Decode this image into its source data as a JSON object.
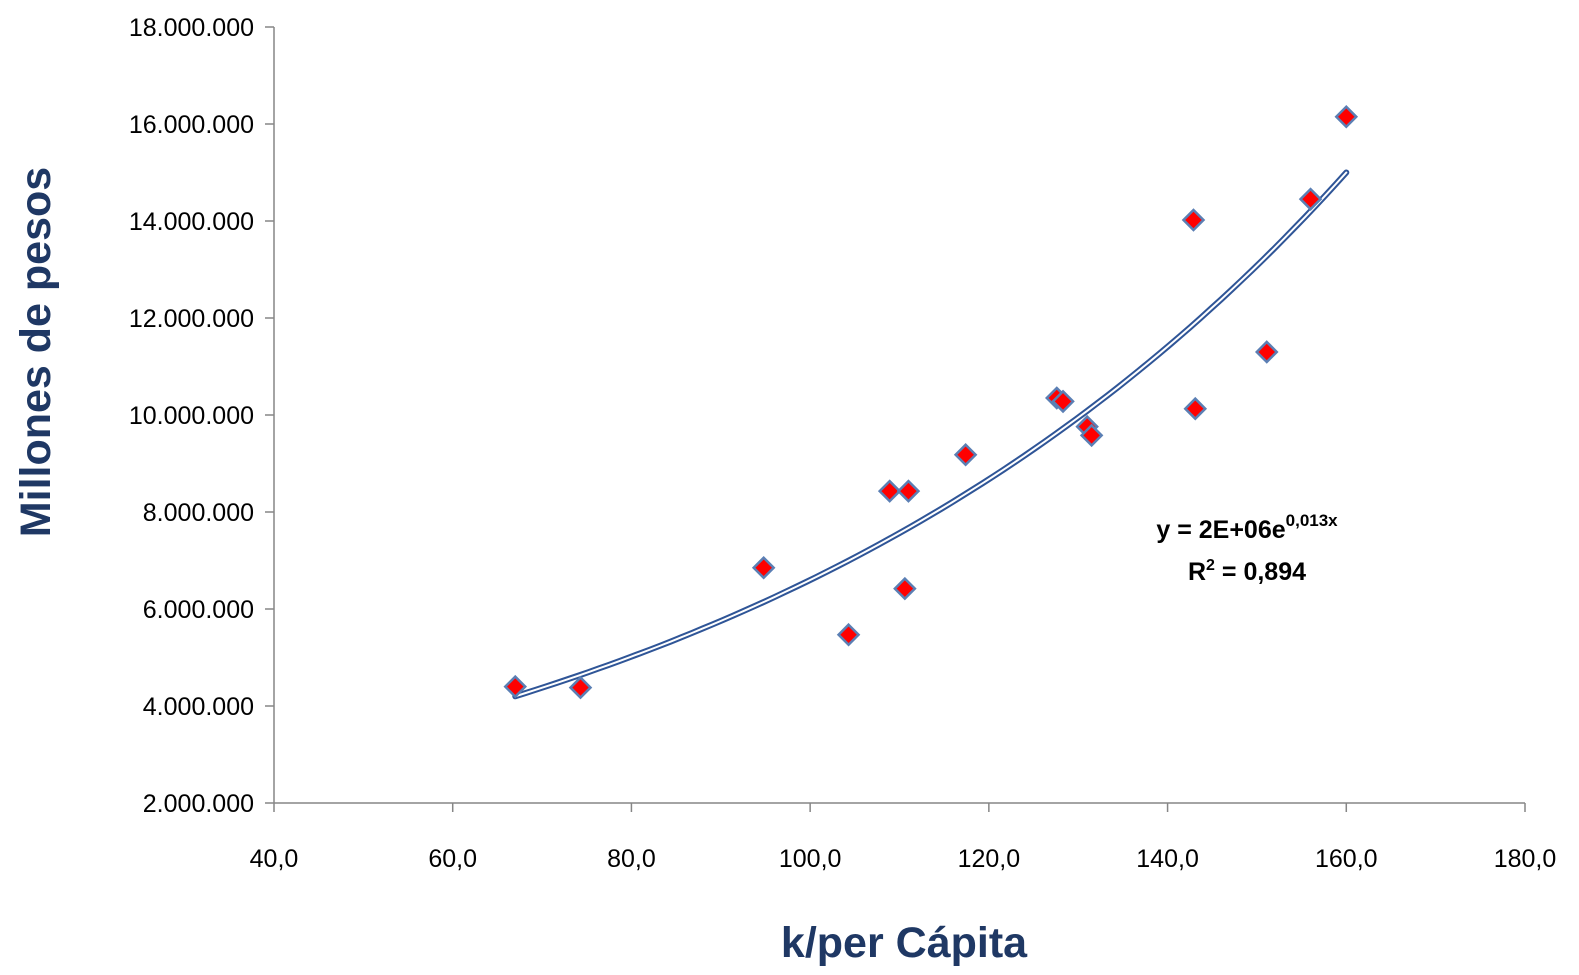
{
  "chart_data": {
    "type": "scatter",
    "title": "",
    "xlabel": "k/per Cápita",
    "ylabel": "Millones de pesos",
    "xlim": [
      40,
      180
    ],
    "ylim": [
      2000000,
      18000000
    ],
    "x_ticks": [
      40,
      60,
      80,
      100,
      120,
      140,
      160,
      180
    ],
    "y_ticks": [
      2000000,
      4000000,
      6000000,
      8000000,
      10000000,
      12000000,
      14000000,
      16000000,
      18000000
    ],
    "x_tick_labels": [
      "40,0",
      "60,0",
      "80,0",
      "100,0",
      "120,0",
      "140,0",
      "160,0",
      "180,0"
    ],
    "y_tick_labels": [
      "2.000.000",
      "4.000.000",
      "6.000.000",
      "8.000.000",
      "10.000.000",
      "12.000.000",
      "14.000.000",
      "16.000.000",
      "18.000.000"
    ],
    "grid": false,
    "legend": "none",
    "series": [
      {
        "marker": "diamond",
        "color": "#ff0000",
        "edge_color": "#5b7fb4",
        "points": [
          {
            "x": 67.0,
            "y": 4400000
          },
          {
            "x": 74.3,
            "y": 4380000
          },
          {
            "x": 94.8,
            "y": 6850000
          },
          {
            "x": 104.3,
            "y": 5470000
          },
          {
            "x": 108.9,
            "y": 8430000
          },
          {
            "x": 110.6,
            "y": 6420000
          },
          {
            "x": 111.0,
            "y": 8430000
          },
          {
            "x": 117.4,
            "y": 9180000
          },
          {
            "x": 127.6,
            "y": 10350000
          },
          {
            "x": 128.3,
            "y": 10280000
          },
          {
            "x": 131.0,
            "y": 9760000
          },
          {
            "x": 131.5,
            "y": 9580000
          },
          {
            "x": 142.9,
            "y": 14020000
          },
          {
            "x": 143.1,
            "y": 10130000
          },
          {
            "x": 151.1,
            "y": 11300000
          },
          {
            "x": 156.0,
            "y": 14450000
          },
          {
            "x": 160.0,
            "y": 16150000
          }
        ]
      }
    ],
    "trendline": {
      "type": "exponential",
      "color": "#2f5597",
      "x_range": [
        67,
        160
      ],
      "y_start": 4200000,
      "y_end": 15000000
    },
    "annotations": {
      "equation": {
        "prefix": "y = 2E+06e",
        "exponent": "0,013x"
      },
      "r_squared": {
        "prefix": "R",
        "sup": "2",
        "suffix": " = 0,894"
      }
    }
  }
}
